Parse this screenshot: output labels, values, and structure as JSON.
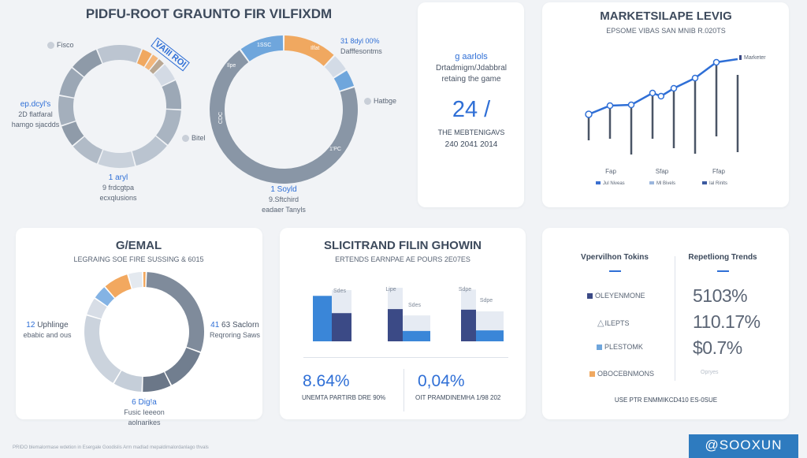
{
  "header": {
    "title": "PIDFU-ROOT GRAUNTO FIR VILFIXDM"
  },
  "donut_left": {
    "top_label": "Fisco",
    "badge": "VAIII ROI",
    "side_label": "Bitel",
    "left_value": "ep.dcyl's",
    "left_line1": "2D flatfaral",
    "left_line2": "hamgo sjacdds",
    "bottom_value": "1 aryl",
    "bottom_line1": "9 frdcgtpa",
    "bottom_line2": "ecxqlusions"
  },
  "donut_right": {
    "top_value": "31 8dyl 00%",
    "top_line": "Dafffesontms",
    "side_label": "Hatbge",
    "bottom_value": "1 Soyld",
    "bottom_line1": "9.Sftchird",
    "bottom_line2": "eadaer Tanyls",
    "seg_labels": [
      "1SSC",
      "Ilfat",
      "Ilpe",
      "CDC",
      "1'PC"
    ]
  },
  "stat_card": {
    "kicker": "g aarlols",
    "line1": "Drtadmigm/Jdabbral",
    "line2": "retaing the game",
    "value": "24 /",
    "caption1": "THE MEBTENIGAVS",
    "caption2": "240 2041 2014"
  },
  "market_card": {
    "title": "MARKETSILAPE LEVIG",
    "subtitle": "EPSOME VIBAS SAN MNIB R.020TS",
    "series_label": "Marketer",
    "x_labels": [
      "Fap",
      "Sfap",
      "Ffap"
    ],
    "legend": [
      "Jul Niveas",
      "Ml Bivels",
      "Ial Rinlts"
    ]
  },
  "general_card": {
    "title": "G/EMAL",
    "subtitle": "LEGRAING SOE FIRE SUSSING & 6015",
    "left_num": "12",
    "left_line1": "Uphlinge",
    "left_line2": "ebabic and ous",
    "right_num": "41",
    "right_line1": "63 Saclorn",
    "right_line2": "Reqroring Saws",
    "bottom_value": "6 Dig!a",
    "bottom_line1": "Fusic Ieeeon",
    "bottom_line2": "aolnarikes"
  },
  "growth_card": {
    "title": "SLICITRAND FILIN GHOWIN",
    "subtitle": "ERTENDS EARNPAE AE POURS 2E07ES",
    "bar_labels": [
      "Sdes",
      "Lipe",
      "Sdes",
      "Sdpe",
      "Sdpe"
    ],
    "stat1_value": "8.64%",
    "stat1_caption": "UNEMTA PARTIRB DRE 90%",
    "stat2_value": "0,04%",
    "stat2_caption": "OIT PRAMDINEMHA 1/98 202"
  },
  "trends_card": {
    "left_header": "Vpervilhon Tokins",
    "right_header": "Repetliong Trends",
    "items": [
      {
        "label": "OLEYENMONE",
        "value": "5103%",
        "color": "#3b4a86"
      },
      {
        "label": "ILEPTS",
        "value": "110.17%",
        "color": "triangle"
      },
      {
        "label": "PLESTOMK",
        "value": "$0.7%",
        "color": "#6fa6dc"
      },
      {
        "label": "OBOCEBNMONS",
        "value": "Opryes",
        "color": "#f0a860"
      }
    ],
    "footer": "USE PTR ENMMIKCD410 ES-0SUE"
  },
  "footer": {
    "note": "PRIDO blemalormase wdetion in Esergale Goodislis Arm madlad mepaldimalordanlago thvals",
    "brand_button": "@SOOXUN"
  },
  "chart_data": [
    {
      "type": "pie",
      "name": "donut-left",
      "values": [
        12,
        3,
        2,
        2,
        5,
        8,
        10,
        10,
        10,
        8,
        6,
        8,
        8,
        8
      ],
      "colors": [
        "#bcc5d1",
        "#f0a860",
        "#f3b67a",
        "#b9a792",
        "#d3dae4",
        "#9ca8b6",
        "#a9b4c1",
        "#bac4d0",
        "#c9d1db",
        "#b1bbc7",
        "#8f9ba9",
        "#a4afbc",
        "#9ba7b5",
        "#8e9aa8"
      ]
    },
    {
      "type": "pie",
      "name": "donut-right",
      "values": [
        12,
        4,
        4,
        70,
        10
      ],
      "colors": [
        "#f0a860",
        "#d3dbe6",
        "#6fa6dc",
        "#8996a6",
        "#6fa6dc"
      ]
    },
    {
      "type": "pie",
      "name": "donut-general",
      "values": [
        30,
        12,
        8,
        8,
        21,
        5,
        4,
        7,
        4,
        1
      ],
      "colors": [
        "#7f8b9b",
        "#717e8f",
        "#6b7788",
        "#c5ced9",
        "#cbd3dd",
        "#d7dde6",
        "#84b3e4",
        "#f2a85f",
        "#e4e9ef",
        "#f2a85f"
      ]
    },
    {
      "type": "line",
      "name": "market-line",
      "x": [
        1,
        2,
        3,
        4,
        4.4,
        5,
        6,
        7,
        8
      ],
      "values": [
        55,
        66,
        67,
        82,
        78,
        88,
        101,
        121,
        125
      ],
      "whiskers": [
        {
          "x": 1,
          "low": 22,
          "high": 55
        },
        {
          "x": 2,
          "low": 24,
          "high": 66
        },
        {
          "x": 3,
          "low": 4,
          "high": 67
        },
        {
          "x": 4,
          "low": 24,
          "high": 82
        },
        {
          "x": 5,
          "low": 12,
          "high": 88
        },
        {
          "x": 6,
          "low": 5,
          "high": 101
        },
        {
          "x": 7,
          "low": 27,
          "high": 121
        },
        {
          "x": 8,
          "low": 7,
          "high": 105
        }
      ],
      "ylim": [
        0,
        140
      ]
    },
    {
      "type": "bar",
      "name": "growth-bars",
      "ylim": [
        0,
        100
      ],
      "groups": [
        {
          "primary": {
            "value": 79,
            "color": "#3a86d8",
            "cap": 79
          },
          "secondary": {
            "value": 49,
            "color": "#3b4a86",
            "cap": 89
          }
        },
        {
          "primary": {
            "value": 56,
            "color": "#3b4a86",
            "cap": 93
          },
          "secondary": {
            "value": 18,
            "color": "#3a86d8",
            "cap": 45
          }
        },
        {
          "primary": {
            "value": 55,
            "color": "#3b4a86",
            "cap": 90
          },
          "secondary": {
            "value": 19,
            "color": "#3a86d8",
            "cap": 52
          }
        }
      ]
    }
  ]
}
